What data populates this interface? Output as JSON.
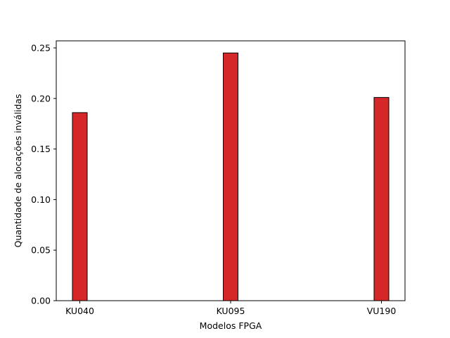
{
  "chart_data": {
    "type": "bar",
    "title": "",
    "xlabel": "Modelos FPGA",
    "ylabel": "Quantidade de alocações inválidas",
    "categories": [
      "KU040",
      "KU095",
      "VU190"
    ],
    "values": [
      0.186,
      0.245,
      0.201
    ],
    "ylim": [
      0,
      0.257
    ],
    "yticks": [
      0.0,
      0.05,
      0.1,
      0.15,
      0.2,
      0.25
    ],
    "ytick_labels": [
      "0.00",
      "0.05",
      "0.10",
      "0.15",
      "0.20",
      "0.25"
    ],
    "grid": false,
    "legend": "none",
    "bar_color": "#d62728",
    "edge_color": "#000000"
  }
}
